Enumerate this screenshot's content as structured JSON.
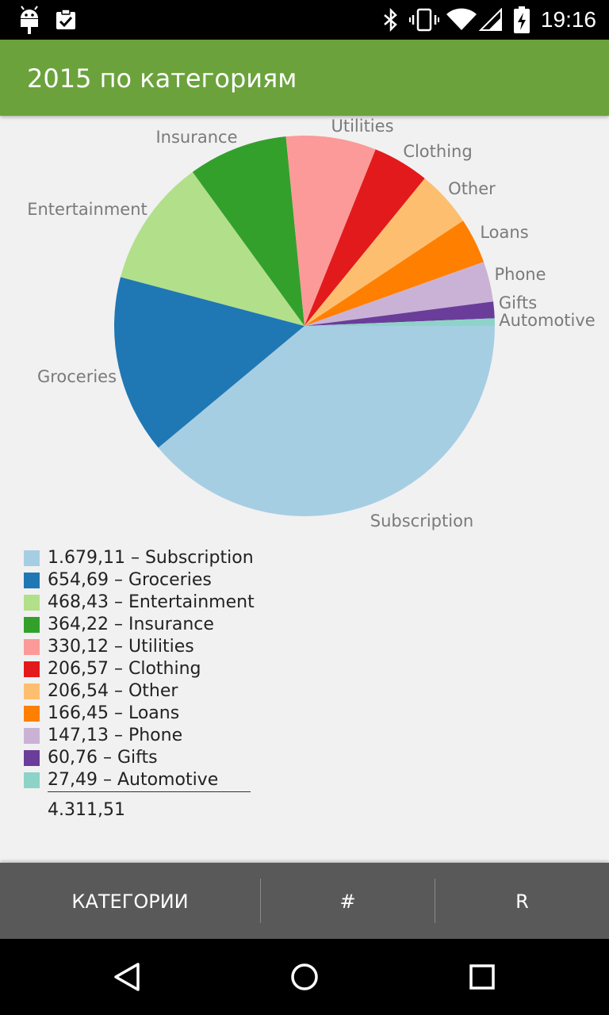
{
  "status_bar": {
    "time": "19:16",
    "icons": [
      "android-debug-icon",
      "clipboard-check-icon",
      "bluetooth-icon",
      "vibrate-icon",
      "wifi-icon",
      "cell-signal-icon",
      "battery-charging-icon"
    ]
  },
  "app_bar": {
    "title": "2015 по категориям"
  },
  "chart_data": {
    "type": "pie",
    "title": "",
    "slices": [
      {
        "label": "Subscription",
        "value": 1679.11,
        "color": "#a6cee3"
      },
      {
        "label": "Groceries",
        "value": 654.69,
        "color": "#1f78b4"
      },
      {
        "label": "Entertainment",
        "value": 468.43,
        "color": "#b2df8a"
      },
      {
        "label": "Insurance",
        "value": 364.22,
        "color": "#33a02c"
      },
      {
        "label": "Utilities",
        "value": 330.12,
        "color": "#fb9a99"
      },
      {
        "label": "Clothing",
        "value": 206.57,
        "color": "#e31a1c"
      },
      {
        "label": "Other",
        "value": 206.54,
        "color": "#fdbf6f"
      },
      {
        "label": "Loans",
        "value": 166.45,
        "color": "#ff7f00"
      },
      {
        "label": "Phone",
        "value": 147.13,
        "color": "#cab2d6"
      },
      {
        "label": "Gifts",
        "value": 60.76,
        "color": "#6a3d9a"
      },
      {
        "label": "Automotive",
        "value": 27.49,
        "color": "#8dd3c7"
      }
    ]
  },
  "legend": {
    "items": [
      {
        "text": "1.679,11 – Subscription",
        "color": "#a6cee3"
      },
      {
        "text": "654,69 – Groceries",
        "color": "#1f78b4"
      },
      {
        "text": "468,43 – Entertainment",
        "color": "#b2df8a"
      },
      {
        "text": "364,22 – Insurance",
        "color": "#33a02c"
      },
      {
        "text": "330,12 – Utilities",
        "color": "#fb9a99"
      },
      {
        "text": "206,57 – Clothing",
        "color": "#e31a1c"
      },
      {
        "text": "206,54 – Other",
        "color": "#fdbf6f"
      },
      {
        "text": "166,45 – Loans",
        "color": "#ff7f00"
      },
      {
        "text": "147,13 – Phone",
        "color": "#cab2d6"
      },
      {
        "text": "60,76 – Gifts",
        "color": "#6a3d9a"
      },
      {
        "text": "27,49 – Automotive",
        "color": "#8dd3c7"
      }
    ],
    "total": "4.311,51"
  },
  "tabs": [
    {
      "label": "КАТЕГОРИИ"
    },
    {
      "label": "#"
    },
    {
      "label": "R"
    }
  ],
  "nav_bar": {
    "icons": [
      "back-icon",
      "home-icon",
      "recents-icon"
    ]
  },
  "colors": {
    "app_bar": "#6ba23c",
    "tab_bar": "#595959",
    "background": "#f1f1f1"
  }
}
